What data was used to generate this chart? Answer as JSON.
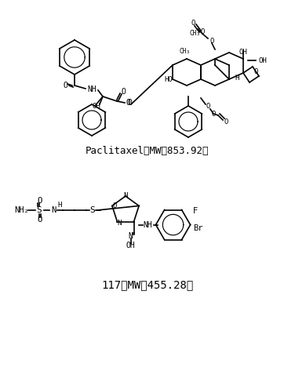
{
  "title1": "Paclitaxel（MW：853.92）",
  "title2": "117（MW：455.28）",
  "label1": "Paclitaxel（MW：853.92）",
  "label2": "117（MW：455.28）",
  "bg_color": "#ffffff",
  "text_color": "#000000",
  "fig_width": 3.76,
  "fig_height": 4.73,
  "dpi": 100
}
